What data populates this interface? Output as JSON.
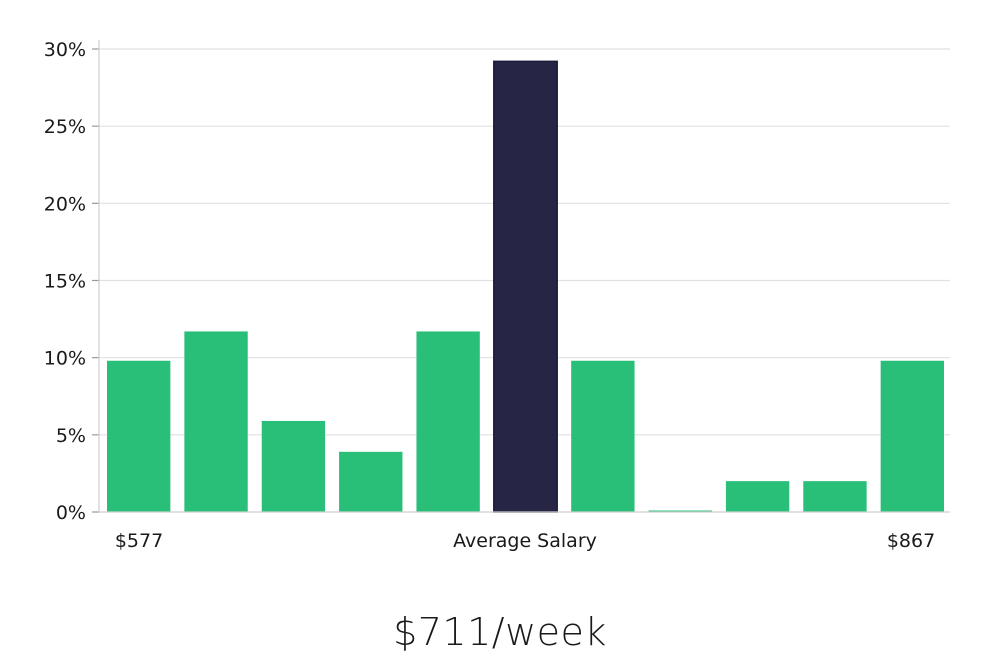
{
  "chart_data": {
    "type": "bar",
    "title": "",
    "xlabel": "",
    "ylabel": "",
    "ylim": [
      0,
      30
    ],
    "y_ticks": [
      0,
      5,
      10,
      15,
      20,
      25,
      30
    ],
    "y_tick_labels": [
      "0%",
      "5%",
      "10%",
      "15%",
      "20%",
      "25%",
      "30%"
    ],
    "values": [
      9.8,
      11.7,
      5.9,
      3.9,
      11.7,
      29.2,
      9.8,
      0,
      2.0,
      2.0,
      9.8
    ],
    "highlight_index": 5,
    "x_labels": {
      "left": "$577",
      "center": "Average Salary",
      "right": "$867"
    },
    "grid": "horizontal",
    "colors": {
      "bar": "#2abf78",
      "highlight": "#272545",
      "grid": "#e1e1e1"
    }
  },
  "summary": {
    "average_salary": "$711/week"
  }
}
